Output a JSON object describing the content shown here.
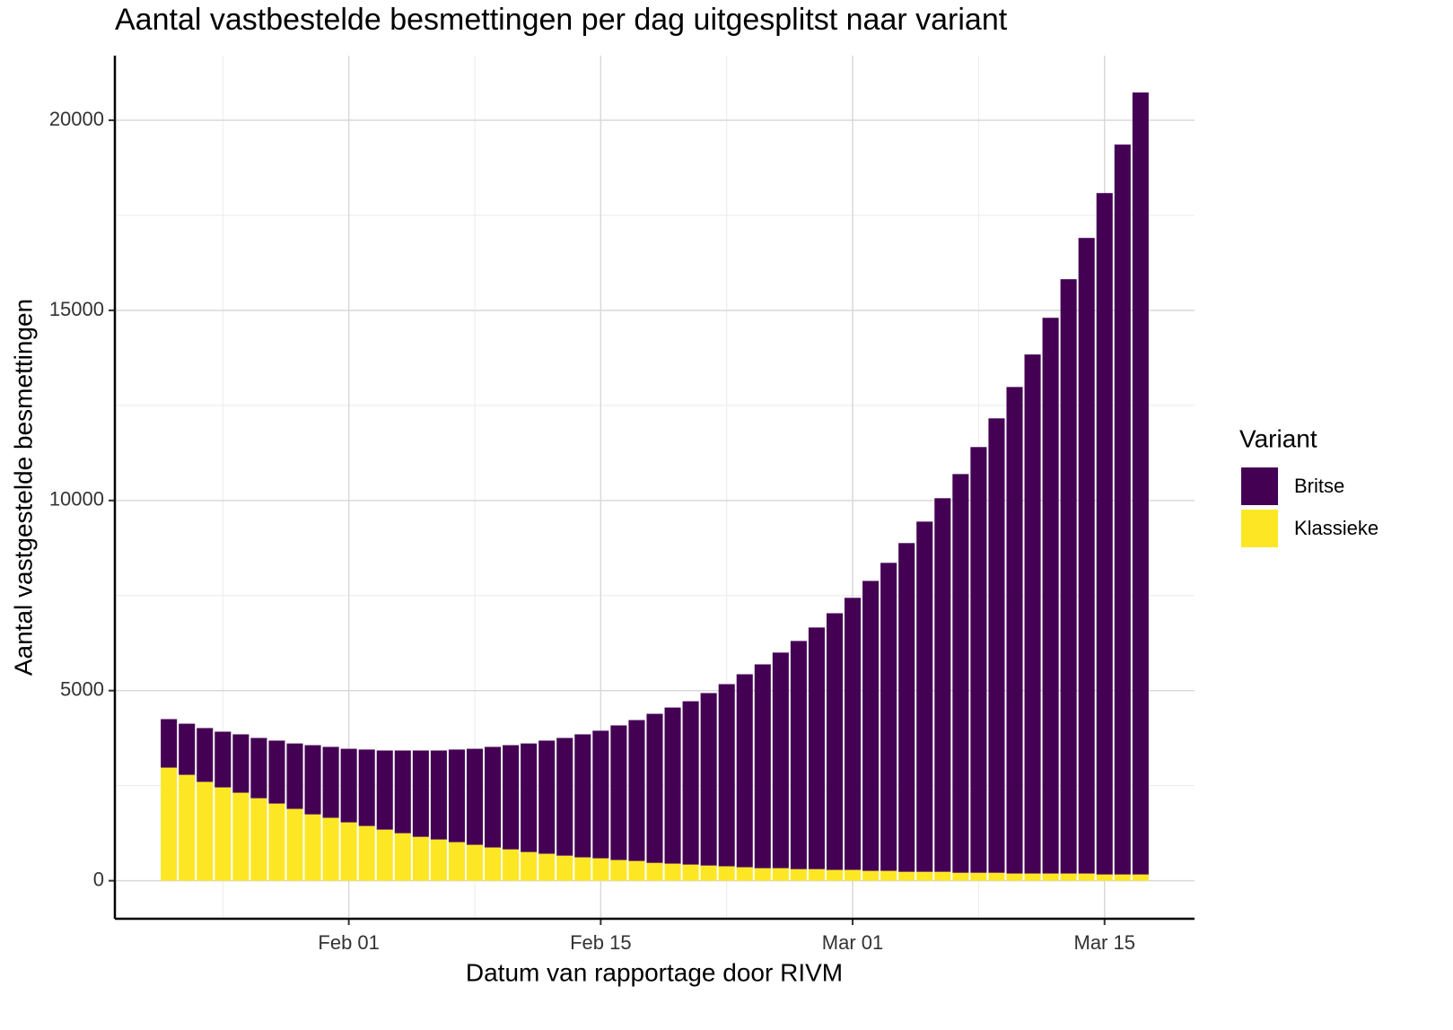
{
  "chart_data": {
    "type": "stacked_bar",
    "title": "Aantal vastbestelde besmettingen per dag uitgesplitst naar variant",
    "x_label": "Datum van rapportage door RIVM",
    "y_label": "Aantal vastgestelde besmettingen",
    "legend_title": "Variant",
    "legend_position": "right",
    "grid": true,
    "x": [
      "01-22",
      "01-23",
      "01-24",
      "01-25",
      "01-26",
      "01-27",
      "01-28",
      "01-29",
      "01-30",
      "01-31",
      "02-01",
      "02-02",
      "02-03",
      "02-04",
      "02-05",
      "02-06",
      "02-07",
      "02-08",
      "02-09",
      "02-10",
      "02-11",
      "02-12",
      "02-13",
      "02-14",
      "02-15",
      "02-16",
      "02-17",
      "02-18",
      "02-19",
      "02-20",
      "02-21",
      "02-22",
      "02-23",
      "02-24",
      "02-25",
      "02-26",
      "02-27",
      "02-28",
      "03-01",
      "03-02",
      "03-03",
      "03-04",
      "03-05",
      "03-06",
      "03-07",
      "03-08",
      "03-09",
      "03-10",
      "03-11",
      "03-12",
      "03-13",
      "03-14",
      "03-15",
      "03-16",
      "03-17"
    ],
    "xlim": [
      "01-19",
      "03-20"
    ],
    "xticks": [
      {
        "value": "02-01",
        "label": "Feb 01"
      },
      {
        "value": "02-15",
        "label": "Feb 15"
      },
      {
        "value": "03-01",
        "label": "Mar 01"
      },
      {
        "value": "03-15",
        "label": "Mar 15"
      }
    ],
    "ylim": [
      -1000,
      21700
    ],
    "yticks": [
      0,
      5000,
      10000,
      15000,
      20000
    ],
    "series": [
      {
        "name": "Britse",
        "color": "#440154",
        "values": [
          1275,
          1345,
          1415,
          1465,
          1535,
          1585,
          1655,
          1720,
          1820,
          1865,
          1935,
          2010,
          2080,
          2175,
          2270,
          2340,
          2435,
          2525,
          2645,
          2740,
          2855,
          2975,
          3095,
          3235,
          3355,
          3540,
          3705,
          3920,
          4105,
          4295,
          4535,
          4790,
          5075,
          5360,
          5670,
          6000,
          6355,
          6750,
          7155,
          7625,
          8100,
          8645,
          9210,
          9825,
          10485,
          11195,
          11950,
          12795,
          13650,
          14615,
          15630,
          16715,
          17920,
          19195,
          20565
        ]
      },
      {
        "name": "Klassieke",
        "color": "#fde725",
        "values": [
          2975,
          2785,
          2600,
          2455,
          2315,
          2170,
          2030,
          1890,
          1745,
          1655,
          1535,
          1440,
          1345,
          1250,
          1155,
          1085,
          1015,
          945,
          875,
          825,
          755,
          710,
          660,
          615,
          590,
          545,
          520,
          470,
          450,
          425,
          400,
          380,
          355,
          330,
          330,
          305,
          305,
          285,
          285,
          260,
          260,
          235,
          235,
          235,
          210,
          210,
          210,
          190,
          190,
          190,
          190,
          190,
          165,
          165,
          165
        ]
      }
    ]
  }
}
